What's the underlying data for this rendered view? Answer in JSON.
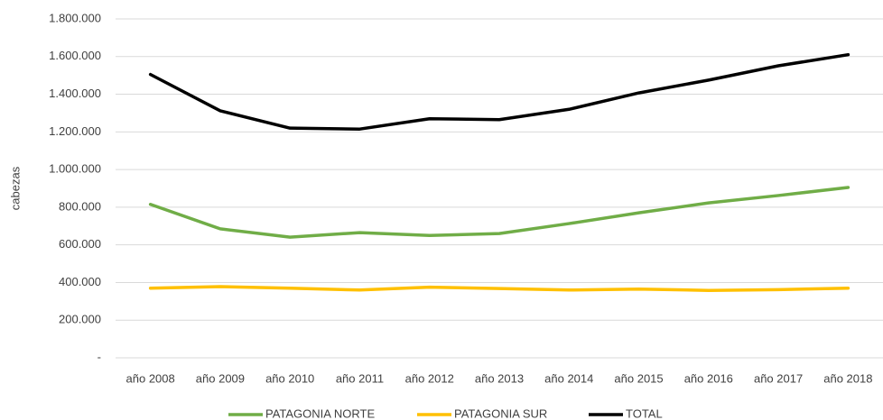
{
  "chart_data": {
    "type": "line",
    "y_label": "cabezas",
    "categories": [
      "año 2008",
      "año 2009",
      "año 2010",
      "año 2011",
      "año 2012",
      "año 2013",
      "año 2014",
      "año 2015",
      "año 2016",
      "año 2017",
      "año 2018"
    ],
    "series": [
      {
        "name": "PATAGONIA NORTE",
        "color": "#70ad47",
        "values": [
          815000,
          685000,
          641000,
          665000,
          650000,
          660000,
          713000,
          770000,
          823000,
          862000,
          905000
        ]
      },
      {
        "name": "PATAGONIA SUR",
        "color": "#ffc000",
        "values": [
          370000,
          378000,
          370000,
          360000,
          375000,
          368000,
          360000,
          365000,
          358000,
          362000,
          370000
        ]
      },
      {
        "name": "TOTAL",
        "color": "#000000",
        "values": [
          1505000,
          1312000,
          1220000,
          1215000,
          1270000,
          1265000,
          1320000,
          1407000,
          1475000,
          1551000,
          1610000
        ]
      }
    ],
    "ylim": [
      0,
      1800000
    ],
    "yticks": [
      {
        "value": 0,
        "label": "-"
      },
      {
        "value": 200000,
        "label": "200.000"
      },
      {
        "value": 400000,
        "label": "400.000"
      },
      {
        "value": 600000,
        "label": "600.000"
      },
      {
        "value": 800000,
        "label": "800.000"
      },
      {
        "value": 1000000,
        "label": "1.000.000"
      },
      {
        "value": 1200000,
        "label": "1.200.000"
      },
      {
        "value": 1400000,
        "label": "1.400.000"
      },
      {
        "value": 1600000,
        "label": "1.600.000"
      },
      {
        "value": 1800000,
        "label": "1.800.000"
      }
    ],
    "grid": true,
    "legend": "bottom"
  }
}
